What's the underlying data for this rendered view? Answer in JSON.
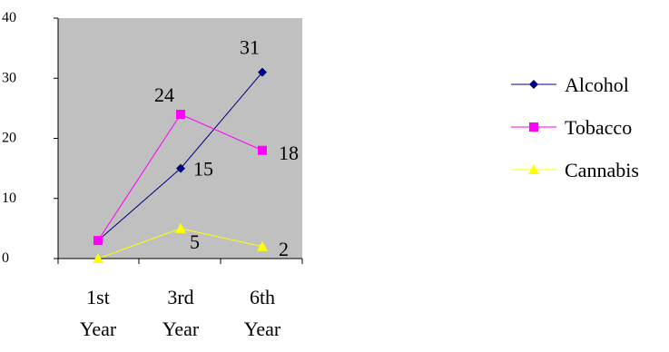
{
  "chart_data": {
    "type": "line",
    "categories": [
      [
        "1st",
        "Year"
      ],
      [
        "3rd",
        "Year"
      ],
      [
        "6th",
        "Year"
      ]
    ],
    "ylim": [
      0,
      40
    ],
    "yticks": [
      0,
      10,
      20,
      30,
      40
    ],
    "plot_background": "#c0c0c0",
    "legend_position": "right",
    "grid": false,
    "series": [
      {
        "name": "Alcohol",
        "values": [
          3,
          15,
          31
        ],
        "color": "#000080",
        "marker": "diamond",
        "labels": [
          "",
          "15",
          "31"
        ]
      },
      {
        "name": "Tobacco",
        "values": [
          3,
          24,
          18
        ],
        "color": "#ff00ff",
        "marker": "square",
        "labels": [
          "",
          "24",
          "18"
        ]
      },
      {
        "name": "Cannabis",
        "values": [
          0,
          5,
          2
        ],
        "color": "#ffff00",
        "marker": "triangle",
        "labels": [
          "",
          "5",
          "2"
        ]
      }
    ]
  }
}
